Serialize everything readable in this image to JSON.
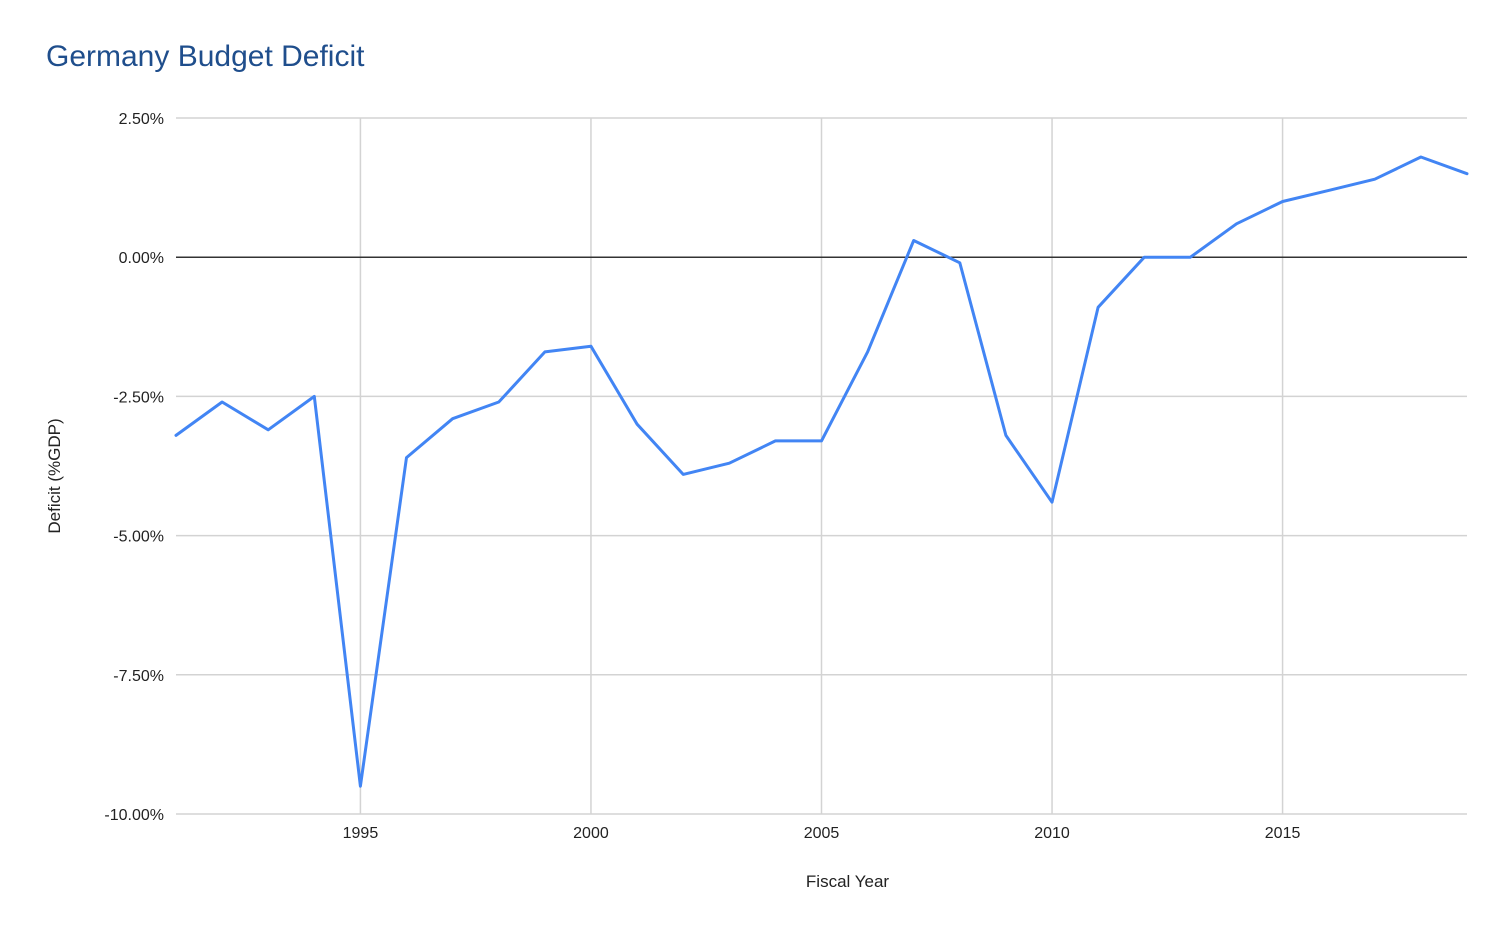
{
  "chart_data": {
    "type": "line",
    "title": "Germany Budget Deficit",
    "xlabel": "Fiscal Year",
    "ylabel": "Deficit (%GDP)",
    "xlim": [
      1991,
      2019
    ],
    "ylim": [
      -10,
      2.5
    ],
    "x_ticks": [
      1995,
      2000,
      2005,
      2010,
      2015
    ],
    "x_tick_labels": [
      "1995",
      "2000",
      "2005",
      "2010",
      "2015"
    ],
    "y_ticks": [
      2.5,
      0,
      -2.5,
      -5,
      -7.5,
      -10
    ],
    "y_tick_labels": [
      "2.50%",
      "0.00%",
      "-2.50%",
      "-5.00%",
      "-7.50%",
      "-10.00%"
    ],
    "grid": true,
    "legend": "none",
    "series": [
      {
        "color": "#4285f4",
        "points": [
          {
            "x": 1991,
            "y": -3.2
          },
          {
            "x": 1992,
            "y": -2.6
          },
          {
            "x": 1993,
            "y": -3.1
          },
          {
            "x": 1994,
            "y": -2.5
          },
          {
            "x": 1995,
            "y": -9.5
          },
          {
            "x": 1996,
            "y": -3.6
          },
          {
            "x": 1997,
            "y": -2.9
          },
          {
            "x": 1998,
            "y": -2.6
          },
          {
            "x": 1999,
            "y": -1.7
          },
          {
            "x": 2000,
            "y": -1.6
          },
          {
            "x": 2001,
            "y": -3.0
          },
          {
            "x": 2002,
            "y": -3.9
          },
          {
            "x": 2003,
            "y": -3.7
          },
          {
            "x": 2004,
            "y": -3.3
          },
          {
            "x": 2005,
            "y": -3.3
          },
          {
            "x": 2006,
            "y": -1.7
          },
          {
            "x": 2007,
            "y": 0.3
          },
          {
            "x": 2008,
            "y": -0.1
          },
          {
            "x": 2009,
            "y": -3.2
          },
          {
            "x": 2010,
            "y": -4.4
          },
          {
            "x": 2011,
            "y": -0.9
          },
          {
            "x": 2012,
            "y": 0.0
          },
          {
            "x": 2013,
            "y": 0.0
          },
          {
            "x": 2014,
            "y": 0.6
          },
          {
            "x": 2015,
            "y": 1.0
          },
          {
            "x": 2016,
            "y": 1.2
          },
          {
            "x": 2017,
            "y": 1.4
          },
          {
            "x": 2018,
            "y": 1.8
          },
          {
            "x": 2019,
            "y": 1.5
          }
        ]
      }
    ],
    "colors": {
      "title": "#1f4e8c",
      "gridline": "#d3d3d3",
      "zero_line": "#333333",
      "line": "#4285f4",
      "text": "#222222"
    }
  }
}
